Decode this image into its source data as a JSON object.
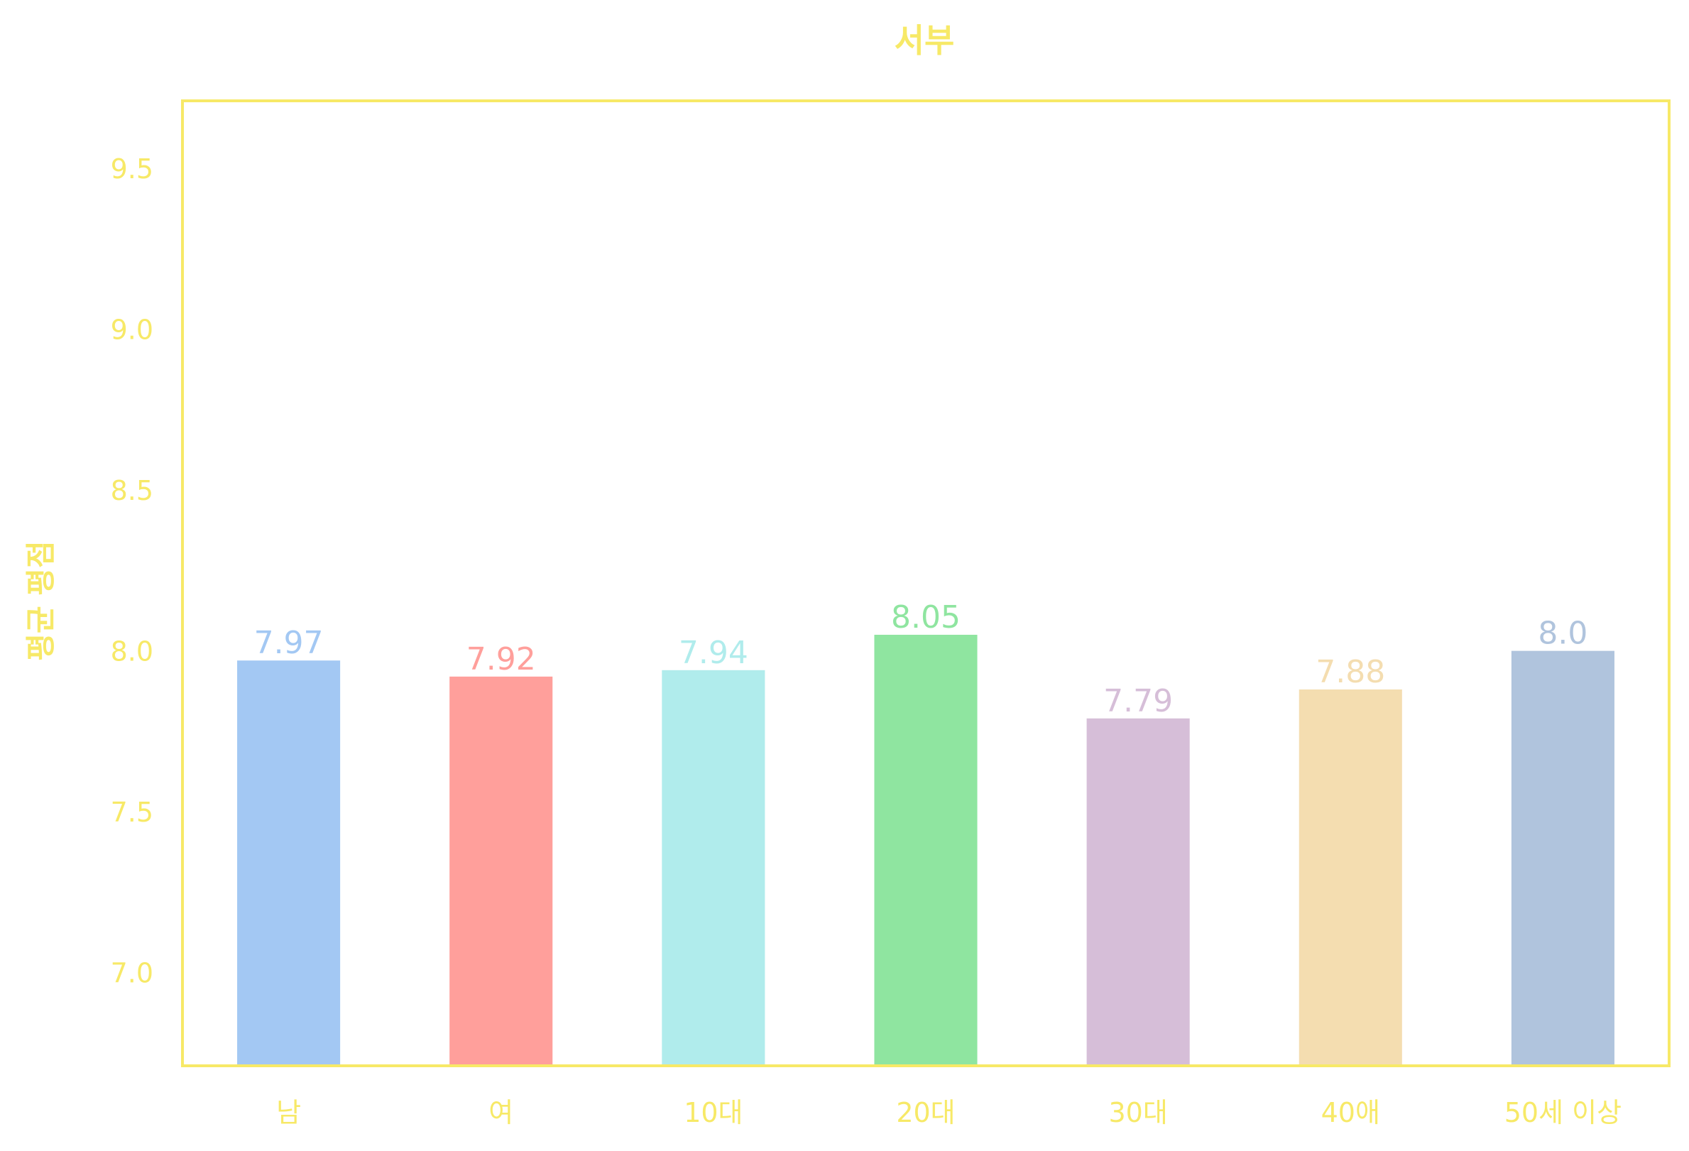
{
  "chart_data": {
    "type": "bar",
    "title": "서부",
    "xlabel": "",
    "ylabel": "평균 평점",
    "categories": [
      "남",
      "여",
      "10대",
      "20대",
      "30대",
      "40애",
      "50세 이상"
    ],
    "values": [
      7.97,
      7.92,
      7.94,
      8.05,
      7.79,
      7.88,
      8.0
    ],
    "value_labels": [
      "7.97",
      "7.92",
      "7.94",
      "8.05",
      "7.79",
      "7.88",
      "8.0"
    ],
    "ylim": [
      6.71,
      9.71
    ],
    "yticks": [
      7.0,
      7.5,
      8.0,
      8.5,
      9.0,
      9.5
    ],
    "ytick_labels": [
      "7.0",
      "7.5",
      "8.0",
      "8.5",
      "9.0",
      "9.5"
    ],
    "grid": false,
    "bar_colors": [
      "#a3c8f3",
      "#ff9f9b",
      "#b0ecec",
      "#8fe5a0",
      "#d6bed8",
      "#f4ddb0",
      "#b0c4dd"
    ],
    "axis_color": "#f7e967",
    "text_color": "#f7e967"
  }
}
